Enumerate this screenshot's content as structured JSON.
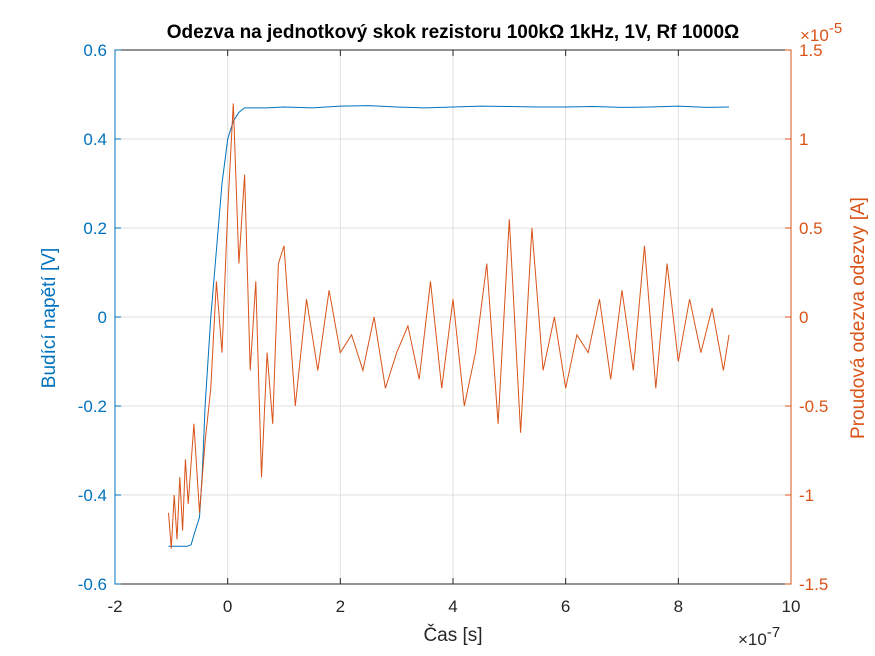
{
  "chart_data": {
    "type": "line",
    "title": "Odezva na jednotkový skok rezistoru 100kΩ 1kHz, 1V, Rf 1000Ω",
    "xlabel": "Čas [s]",
    "ylabel_left": "Budící napětí [V]",
    "ylabel_right": "Proudová odezva odezvy [A]",
    "xlim": [
      -2e-07,
      1e-06
    ],
    "ylim_left": [
      -0.6,
      0.6
    ],
    "ylim_right": [
      -1.5e-05,
      1.5e-05
    ],
    "x_ticks": [
      -2e-07,
      0,
      2e-07,
      4e-07,
      6e-07,
      8e-07,
      1e-06
    ],
    "x_tick_labels": [
      "-2",
      "0",
      "2",
      "4",
      "6",
      "8",
      "10"
    ],
    "x_exponent_label": "×10",
    "x_exponent_power": "-7",
    "y_left_ticks": [
      -0.6,
      -0.4,
      -0.2,
      0,
      0.2,
      0.4,
      0.6
    ],
    "y_left_tick_labels": [
      "-0.6",
      "-0.4",
      "-0.2",
      "0",
      "0.2",
      "0.4",
      "0.6"
    ],
    "y_right_ticks": [
      -1.5e-05,
      -1e-05,
      -5e-06,
      0,
      5e-06,
      1e-05,
      1.5e-05
    ],
    "y_right_tick_labels": [
      "-1.5",
      "-1",
      "-0.5",
      "0",
      "0.5",
      "1",
      "1.5"
    ],
    "y_right_exponent_label": "×10",
    "y_right_exponent_power": "-5",
    "grid": true,
    "colors": {
      "left_axis": "#0072BD",
      "right_axis": "#D95319",
      "grid": "#DFDFDF",
      "box": "#262626"
    },
    "series": [
      {
        "axis": "left",
        "color": "#0072BD",
        "x": [
          -1.05e-07,
          -1e-07,
          -9e-08,
          -8e-08,
          -7.2e-08,
          -6.5e-08,
          -6e-08,
          -5e-08,
          -4.5e-08,
          -4e-08,
          -3e-08,
          -2e-08,
          -1e-08,
          0,
          1e-08,
          2e-08,
          3e-08,
          5e-08,
          7e-08,
          1e-07,
          1.5e-07,
          2e-07,
          2.5e-07,
          3e-07,
          3.5e-07,
          4e-07,
          4.5e-07,
          5e-07,
          5.5e-07,
          6e-07,
          6.5e-07,
          7e-07,
          7.5e-07,
          8e-07,
          8.5e-07,
          8.9e-07
        ],
        "y": [
          -0.515,
          -0.515,
          -0.515,
          -0.515,
          -0.515,
          -0.512,
          -0.49,
          -0.45,
          -0.35,
          -0.2,
          0.0,
          0.15,
          0.3,
          0.4,
          0.44,
          0.46,
          0.47,
          0.47,
          0.47,
          0.472,
          0.47,
          0.474,
          0.475,
          0.472,
          0.47,
          0.472,
          0.474,
          0.473,
          0.472,
          0.472,
          0.473,
          0.471,
          0.472,
          0.474,
          0.471,
          0.472
        ]
      },
      {
        "axis": "right",
        "color": "#D95319",
        "x": [
          -1.05e-07,
          -1e-07,
          -9.5e-08,
          -9e-08,
          -8.5e-08,
          -8e-08,
          -7.5e-08,
          -7e-08,
          -6e-08,
          -5e-08,
          -4e-08,
          -3e-08,
          -2e-08,
          -1e-08,
          0,
          1e-08,
          2e-08,
          3e-08,
          4e-08,
          5e-08,
          6e-08,
          7e-08,
          8e-08,
          9e-08,
          1e-07,
          1.2e-07,
          1.4e-07,
          1.6e-07,
          1.8e-07,
          2e-07,
          2.2e-07,
          2.4e-07,
          2.6e-07,
          2.8e-07,
          3e-07,
          3.2e-07,
          3.4e-07,
          3.6e-07,
          3.8e-07,
          4e-07,
          4.2e-07,
          4.4e-07,
          4.6e-07,
          4.8e-07,
          5e-07,
          5.2e-07,
          5.4e-07,
          5.6e-07,
          5.8e-07,
          6e-07,
          6.2e-07,
          6.4e-07,
          6.6e-07,
          6.8e-07,
          7e-07,
          7.2e-07,
          7.4e-07,
          7.6e-07,
          7.8e-07,
          8e-07,
          8.2e-07,
          8.4e-07,
          8.6e-07,
          8.8e-07,
          8.9e-07
        ],
        "y": [
          -1.1e-05,
          -1.3e-05,
          -1e-05,
          -1.25e-05,
          -9e-06,
          -1.2e-05,
          -8e-06,
          -1.05e-05,
          -6e-06,
          -1.1e-05,
          -7e-06,
          -4e-06,
          2e-06,
          -2e-06,
          6e-06,
          1.2e-05,
          3e-06,
          8e-06,
          -3e-06,
          2e-06,
          -9e-06,
          -2e-06,
          -6e-06,
          3e-06,
          4e-06,
          -5e-06,
          1e-06,
          -3e-06,
          1.5e-06,
          -2e-06,
          -1e-06,
          -3e-06,
          0.0,
          -4e-06,
          -2e-06,
          -5e-07,
          -3.5e-06,
          2e-06,
          -4e-06,
          1e-06,
          -5e-06,
          -2e-06,
          3e-06,
          -6e-06,
          5.5e-06,
          -6.5e-06,
          5e-06,
          -3e-06,
          0.0,
          -4e-06,
          -1e-06,
          -2e-06,
          1e-06,
          -3.5e-06,
          1.5e-06,
          -3e-06,
          4e-06,
          -4e-06,
          3e-06,
          -2.5e-06,
          1e-06,
          -2e-06,
          5e-07,
          -3e-06,
          -1e-06
        ]
      }
    ]
  }
}
